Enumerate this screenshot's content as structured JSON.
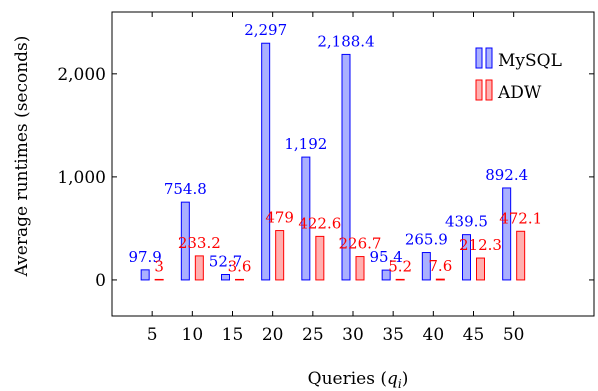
{
  "chart_data": {
    "type": "bar",
    "categories": [
      "5",
      "10",
      "15",
      "20",
      "25",
      "30",
      "35",
      "40",
      "45",
      "50"
    ],
    "series": [
      {
        "name": "MySQL",
        "values": [
          97.9,
          754.8,
          52.7,
          2297,
          1192,
          2188.4,
          95.4,
          265.9,
          439.5,
          892.4
        ],
        "labels": [
          "97.9",
          "754.8",
          "52.7",
          "2,297",
          "1,192",
          "2,188.4",
          "95.4",
          "265.9",
          "439.5",
          "892.4"
        ],
        "color": "#0000ff",
        "fill": "#aab0ff"
      },
      {
        "name": "ADW",
        "values": [
          3,
          233.2,
          3.6,
          479,
          422.6,
          226.7,
          5.2,
          7.6,
          212.3,
          472.1
        ],
        "labels": [
          "3",
          "233.2",
          "3.6",
          "479",
          "422.6",
          "226.7",
          "5.2",
          "7.6",
          "212.3",
          "472.1"
        ],
        "color": "#ff0000",
        "fill": "#ffb0b0"
      }
    ],
    "xlabel": "Queries (q_i)",
    "xlabel_main": "Queries (",
    "xlabel_var": "q",
    "xlabel_sub": "i",
    "xlabel_close": ")",
    "ylabel": "Average runtimes (seconds)",
    "yticks": [
      0,
      1000,
      2000
    ],
    "ytick_labels": [
      "0",
      "1,000",
      "2,000"
    ],
    "ylim": [
      -350,
      2600
    ],
    "xlim": [
      0,
      60
    ],
    "grid": false,
    "legend_position": "top-right"
  }
}
